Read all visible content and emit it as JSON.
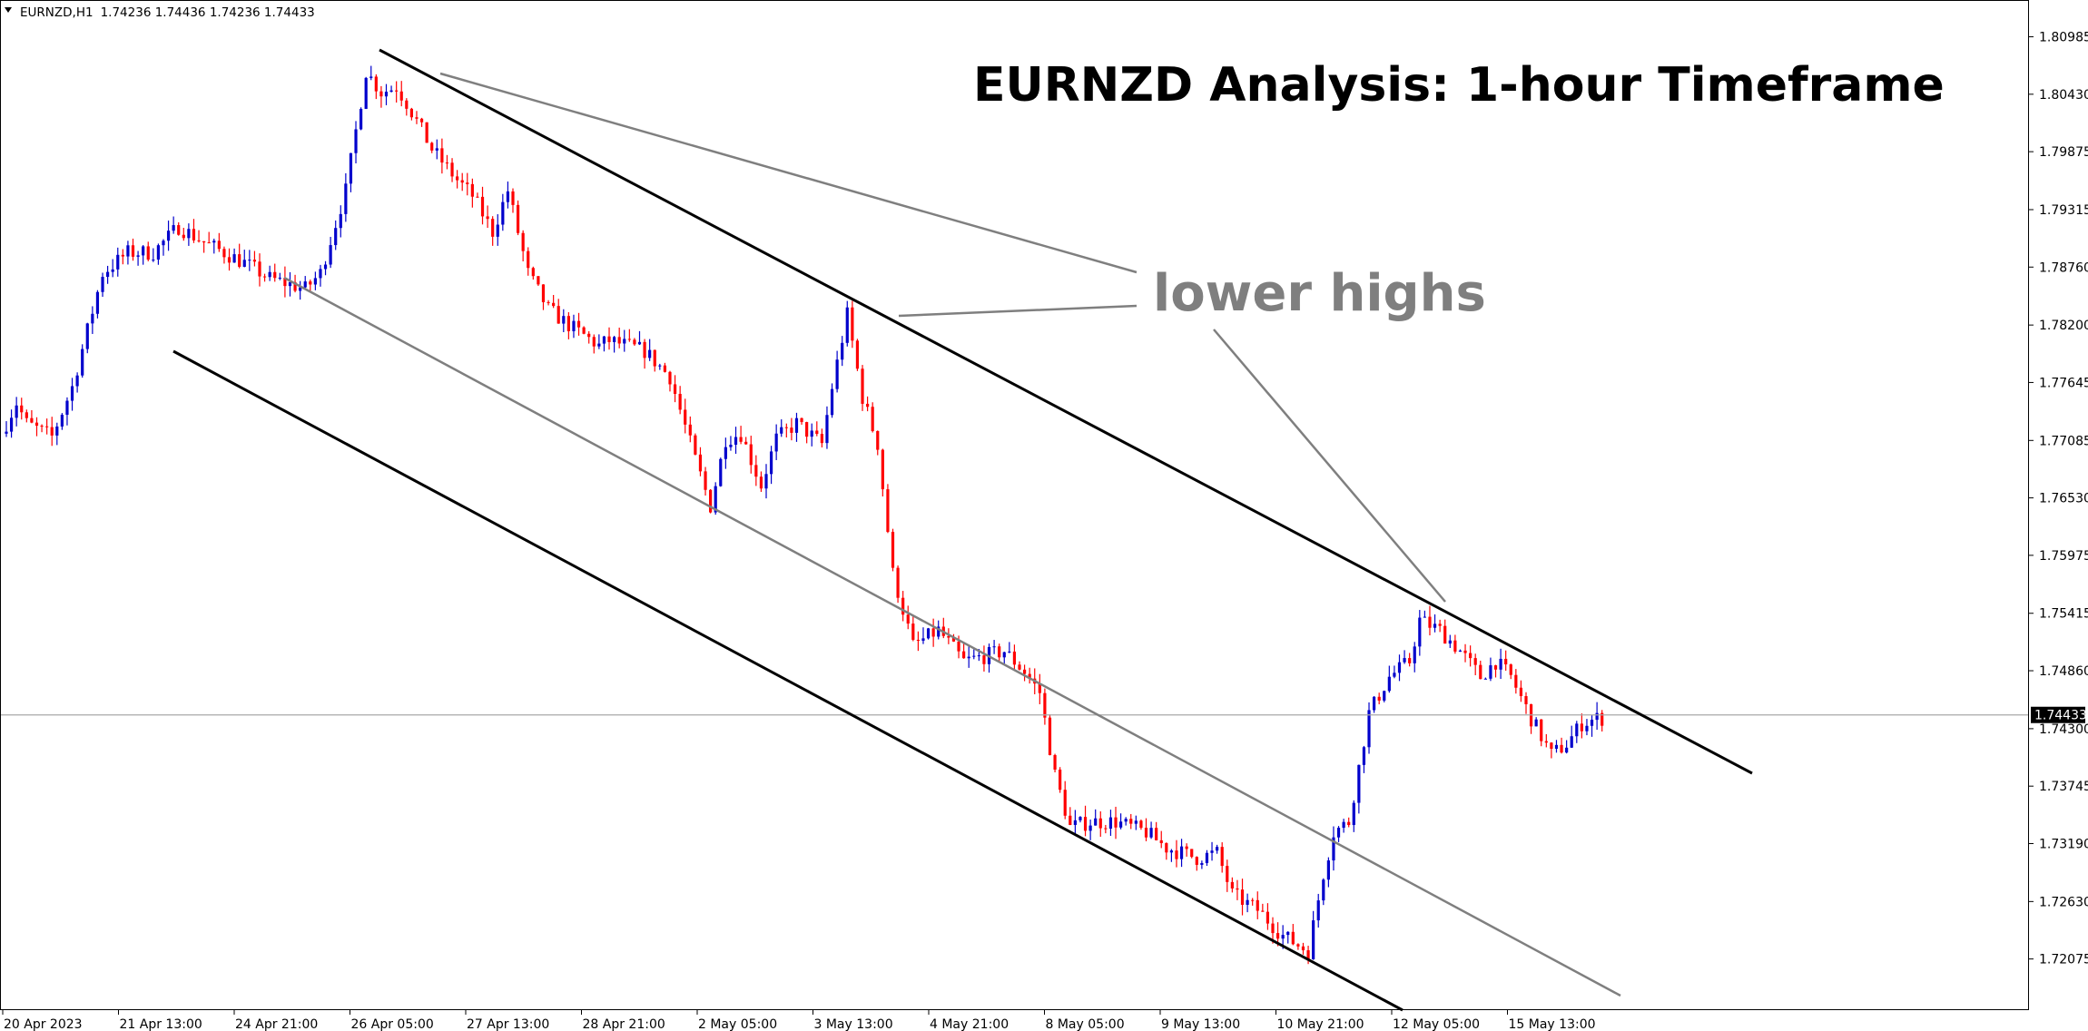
{
  "chart_data": {
    "type": "candlestick",
    "symbol_header": "EURNZD,H1",
    "ohlc_readout": "1.74236 1.74436 1.74236 1.74433",
    "title": "EURNZD Analysis: 1-hour Timeframe",
    "annotation": "lower highs",
    "current_price": "1.74433",
    "ylim": [
      1.718,
      1.8113
    ],
    "y_ticks": [
      "1.80985",
      "1.80430",
      "1.79875",
      "1.79315",
      "1.78760",
      "1.78200",
      "1.77645",
      "1.77085",
      "1.76530",
      "1.75975",
      "1.75415",
      "1.74860",
      "1.74300",
      "1.73745",
      "1.73190",
      "1.72630",
      "1.72075"
    ],
    "x_ticks": [
      "20 Apr 2023",
      "21 Apr 13:00",
      "24 Apr 21:00",
      "26 Apr 05:00",
      "27 Apr 13:00",
      "28 Apr 21:00",
      "2 May 05:00",
      "3 May 13:00",
      "4 May 21:00",
      "8 May 05:00",
      "9 May 13:00",
      "10 May 21:00",
      "12 May 05:00",
      "15 May 13:00"
    ],
    "bull_color": "#0000cc",
    "bear_color": "#ff0000",
    "price_path": [
      [
        0,
        1.7715
      ],
      [
        3,
        1.7745
      ],
      [
        5,
        1.7725
      ],
      [
        10,
        1.7712
      ],
      [
        14,
        1.776
      ],
      [
        20,
        1.787
      ],
      [
        25,
        1.789
      ],
      [
        30,
        1.789
      ],
      [
        35,
        1.7915
      ],
      [
        40,
        1.79
      ],
      [
        48,
        1.788
      ],
      [
        53,
        1.7865
      ],
      [
        60,
        1.7855
      ],
      [
        63,
        1.787
      ],
      [
        68,
        1.795
      ],
      [
        72,
        1.8065
      ],
      [
        75,
        1.8045
      ],
      [
        78,
        1.805
      ],
      [
        80,
        1.8035
      ],
      [
        85,
        1.799
      ],
      [
        90,
        1.796
      ],
      [
        93,
        1.7945
      ],
      [
        97,
        1.791
      ],
      [
        100,
        1.795
      ],
      [
        104,
        1.787
      ],
      [
        108,
        1.7835
      ],
      [
        112,
        1.782
      ],
      [
        118,
        1.78
      ],
      [
        120,
        1.7805
      ],
      [
        127,
        1.7795
      ],
      [
        132,
        1.777
      ],
      [
        137,
        1.769
      ],
      [
        140,
        1.7645
      ],
      [
        143,
        1.771
      ],
      [
        146,
        1.7715
      ],
      [
        150,
        1.7665
      ],
      [
        153,
        1.771
      ],
      [
        157,
        1.7725
      ],
      [
        162,
        1.7705
      ],
      [
        164,
        1.776
      ],
      [
        167,
        1.783
      ],
      [
        170,
        1.775
      ],
      [
        173,
        1.7705
      ],
      [
        176,
        1.758
      ],
      [
        180,
        1.751
      ],
      [
        185,
        1.7525
      ],
      [
        190,
        1.7495
      ],
      [
        194,
        1.75
      ],
      [
        198,
        1.7505
      ],
      [
        202,
        1.7485
      ],
      [
        205,
        1.7465
      ],
      [
        208,
        1.7385
      ],
      [
        211,
        1.7335
      ],
      [
        215,
        1.734
      ],
      [
        220,
        1.734
      ],
      [
        226,
        1.733
      ],
      [
        230,
        1.7315
      ],
      [
        236,
        1.7305
      ],
      [
        240,
        1.731
      ],
      [
        243,
        1.727
      ],
      [
        248,
        1.7255
      ],
      [
        253,
        1.723
      ],
      [
        258,
        1.7215
      ],
      [
        261,
        1.729
      ],
      [
        263,
        1.733
      ],
      [
        266,
        1.734
      ],
      [
        270,
        1.7445
      ],
      [
        274,
        1.748
      ],
      [
        278,
        1.7495
      ],
      [
        280,
        1.7535
      ],
      [
        284,
        1.7525
      ],
      [
        288,
        1.7505
      ],
      [
        292,
        1.748
      ],
      [
        295,
        1.7495
      ],
      [
        298,
        1.748
      ],
      [
        302,
        1.744
      ],
      [
        306,
        1.7405
      ],
      [
        309,
        1.7415
      ],
      [
        312,
        1.7435
      ],
      [
        315,
        1.744
      ]
    ]
  }
}
